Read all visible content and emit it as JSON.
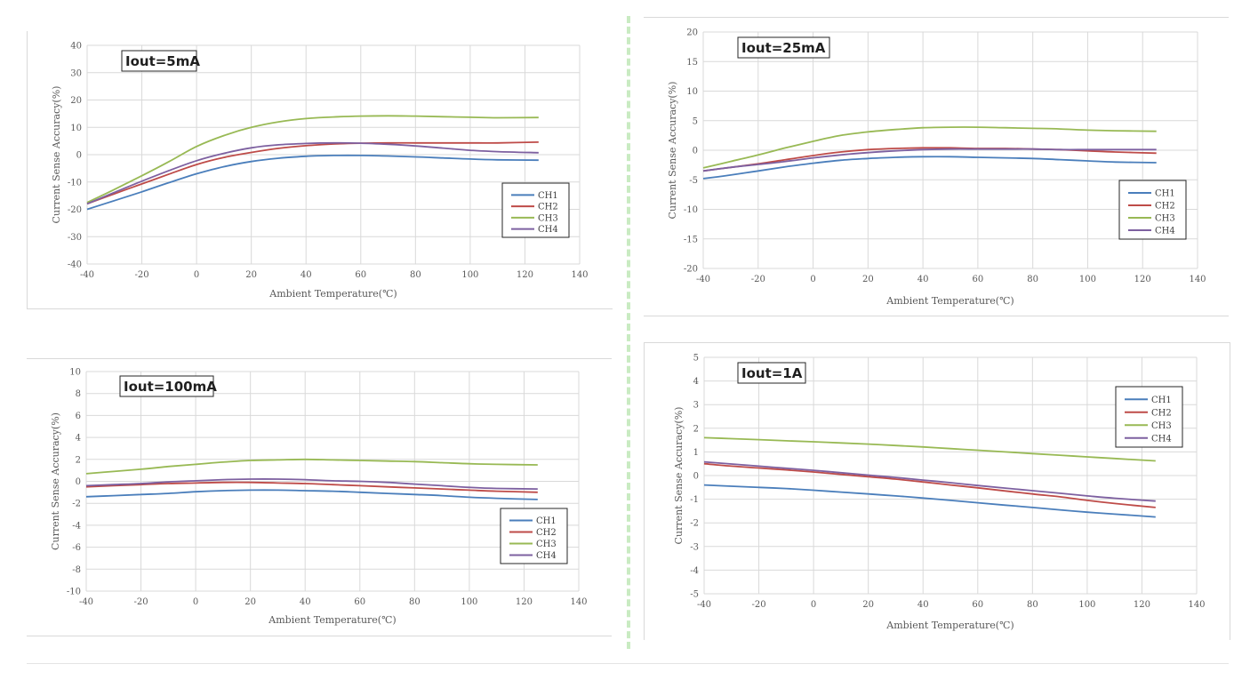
{
  "colors": {
    "CH1": "#4a7ebb",
    "CH2": "#be4b48",
    "CH3": "#98b954",
    "CH4": "#7d60a0"
  },
  "chart_data": [
    {
      "type": "line",
      "title": "Iout=5mA",
      "xlabel": "Ambient Temperature(℃)",
      "ylabel": "Current Sense Accuracy(%)",
      "xlim": [
        -40,
        140
      ],
      "ylim": [
        -40,
        40
      ],
      "xticks": [
        -40,
        -20,
        0,
        20,
        40,
        60,
        80,
        100,
        120,
        140
      ],
      "yticks": [
        -40,
        -30,
        -20,
        -10,
        0,
        10,
        20,
        30,
        40
      ],
      "grid": true,
      "legend": "lower-right",
      "x": [
        -40,
        -30,
        -20,
        -10,
        0,
        10,
        20,
        30,
        40,
        50,
        60,
        70,
        80,
        90,
        100,
        110,
        125
      ],
      "series": [
        {
          "name": "CH1",
          "values": [
            -20,
            -16.8,
            -13.6,
            -10.2,
            -7,
            -4.4,
            -2.5,
            -1.3,
            -0.6,
            -0.3,
            -0.3,
            -0.5,
            -0.8,
            -1.2,
            -1.6,
            -1.9,
            -2
          ]
        },
        {
          "name": "CH2",
          "values": [
            -18,
            -14.3,
            -10.7,
            -7.1,
            -3.6,
            -1,
            0.8,
            2.3,
            3.3,
            3.9,
            4.2,
            4.3,
            4.3,
            4.3,
            4.3,
            4.3,
            4.6
          ]
        },
        {
          "name": "CH3",
          "values": [
            -17.5,
            -12.7,
            -7.7,
            -2.5,
            3,
            7,
            10,
            12,
            13.2,
            13.8,
            14.1,
            14.2,
            14.1,
            13.9,
            13.7,
            13.5,
            13.6
          ]
        },
        {
          "name": "CH4",
          "values": [
            -18,
            -13.8,
            -9.7,
            -5.8,
            -2.2,
            0.5,
            2.5,
            3.6,
            4.1,
            4.3,
            4.2,
            3.8,
            3.2,
            2.4,
            1.6,
            1.1,
            0.7
          ]
        }
      ]
    },
    {
      "type": "line",
      "title": "Iout=25mA",
      "xlabel": "Ambient Temperature(℃)",
      "ylabel": "Current Sense Accuracy(%)",
      "xlim": [
        -40,
        140
      ],
      "ylim": [
        -20,
        20
      ],
      "xticks": [
        -40,
        -20,
        0,
        20,
        40,
        60,
        80,
        100,
        120,
        140
      ],
      "yticks": [
        -20,
        -15,
        -10,
        -5,
        0,
        5,
        10,
        15,
        20
      ],
      "grid": true,
      "legend": "lower-right",
      "x": [
        -40,
        -30,
        -20,
        -10,
        0,
        10,
        20,
        30,
        40,
        50,
        60,
        70,
        80,
        90,
        100,
        110,
        125
      ],
      "series": [
        {
          "name": "CH1",
          "values": [
            -4.8,
            -4.2,
            -3.5,
            -2.8,
            -2.2,
            -1.7,
            -1.4,
            -1.2,
            -1.1,
            -1.1,
            -1.2,
            -1.3,
            -1.4,
            -1.6,
            -1.8,
            -2,
            -2.1
          ]
        },
        {
          "name": "CH2",
          "values": [
            -3.5,
            -2.9,
            -2.3,
            -1.6,
            -0.9,
            -0.3,
            0.1,
            0.3,
            0.4,
            0.4,
            0.3,
            0.3,
            0.2,
            0.1,
            -0.1,
            -0.3,
            -0.5
          ]
        },
        {
          "name": "CH3",
          "values": [
            -3,
            -1.9,
            -0.8,
            0.4,
            1.5,
            2.5,
            3.1,
            3.5,
            3.8,
            3.9,
            3.9,
            3.8,
            3.7,
            3.6,
            3.4,
            3.3,
            3.2
          ]
        },
        {
          "name": "CH4",
          "values": [
            -3.5,
            -2.9,
            -2.4,
            -1.9,
            -1.3,
            -0.8,
            -0.4,
            -0.1,
            0.1,
            0.2,
            0.2,
            0.2,
            0.2,
            0.1,
            0.1,
            0.1,
            0.1
          ]
        }
      ]
    },
    {
      "type": "line",
      "title": "Iout=100mA",
      "xlabel": "Ambient Temperature(℃)",
      "ylabel": "Current Sense Accuracy(%)",
      "xlim": [
        -40,
        140
      ],
      "ylim": [
        -10,
        10
      ],
      "xticks": [
        -40,
        -20,
        0,
        20,
        40,
        60,
        80,
        100,
        120,
        140
      ],
      "yticks": [
        -10,
        -8,
        -6,
        -4,
        -2,
        0,
        2,
        4,
        6,
        8,
        10
      ],
      "grid": true,
      "legend": "lower-right",
      "x": [
        -40,
        -30,
        -20,
        -10,
        0,
        10,
        20,
        30,
        40,
        50,
        60,
        70,
        80,
        90,
        100,
        110,
        125
      ],
      "series": [
        {
          "name": "CH1",
          "values": [
            -1.4,
            -1.3,
            -1.2,
            -1.1,
            -0.95,
            -0.85,
            -0.8,
            -0.8,
            -0.85,
            -0.9,
            -1,
            -1.1,
            -1.2,
            -1.3,
            -1.45,
            -1.55,
            -1.65
          ]
        },
        {
          "name": "CH2",
          "values": [
            -0.5,
            -0.4,
            -0.3,
            -0.2,
            -0.15,
            -0.1,
            -0.1,
            -0.15,
            -0.2,
            -0.3,
            -0.4,
            -0.5,
            -0.6,
            -0.7,
            -0.8,
            -0.9,
            -1
          ]
        },
        {
          "name": "CH3",
          "values": [
            0.7,
            0.9,
            1.1,
            1.35,
            1.55,
            1.75,
            1.9,
            1.95,
            2,
            1.95,
            1.9,
            1.85,
            1.8,
            1.7,
            1.6,
            1.55,
            1.5
          ]
        },
        {
          "name": "CH4",
          "values": [
            -0.4,
            -0.3,
            -0.2,
            -0.05,
            0.05,
            0.15,
            0.2,
            0.2,
            0.15,
            0.05,
            0,
            -0.1,
            -0.25,
            -0.4,
            -0.55,
            -0.65,
            -0.7
          ]
        }
      ]
    },
    {
      "type": "line",
      "title": "Iout=1A",
      "xlabel": "Ambient Temperature(℃)",
      "ylabel": "Current Sense Accuracy(%)",
      "xlim": [
        -40,
        140
      ],
      "ylim": [
        -5,
        5
      ],
      "xticks": [
        -40,
        -20,
        0,
        20,
        40,
        60,
        80,
        100,
        120,
        140
      ],
      "yticks": [
        -5,
        -4,
        -3,
        -2,
        -1,
        0,
        1,
        2,
        3,
        4,
        5
      ],
      "grid": true,
      "legend": "upper-right",
      "x": [
        -40,
        -30,
        -20,
        -10,
        0,
        10,
        20,
        30,
        40,
        50,
        60,
        70,
        80,
        90,
        100,
        110,
        125
      ],
      "series": [
        {
          "name": "CH1",
          "values": [
            -0.4,
            -0.45,
            -0.5,
            -0.55,
            -0.62,
            -0.7,
            -0.78,
            -0.86,
            -0.95,
            -1.05,
            -1.15,
            -1.25,
            -1.35,
            -1.45,
            -1.55,
            -1.63,
            -1.75
          ]
        },
        {
          "name": "CH2",
          "values": [
            0.5,
            0.4,
            0.32,
            0.24,
            0.15,
            0.05,
            -0.05,
            -0.15,
            -0.27,
            -0.4,
            -0.52,
            -0.65,
            -0.78,
            -0.9,
            -1.05,
            -1.18,
            -1.35
          ]
        },
        {
          "name": "CH3",
          "values": [
            1.6,
            1.56,
            1.52,
            1.47,
            1.43,
            1.38,
            1.33,
            1.27,
            1.21,
            1.14,
            1.07,
            1,
            0.93,
            0.86,
            0.79,
            0.72,
            0.62
          ]
        },
        {
          "name": "CH4",
          "values": [
            0.58,
            0.49,
            0.4,
            0.31,
            0.22,
            0.12,
            0.02,
            -0.08,
            -0.19,
            -0.3,
            -0.42,
            -0.53,
            -0.64,
            -0.75,
            -0.86,
            -0.96,
            -1.08
          ]
        }
      ]
    }
  ]
}
